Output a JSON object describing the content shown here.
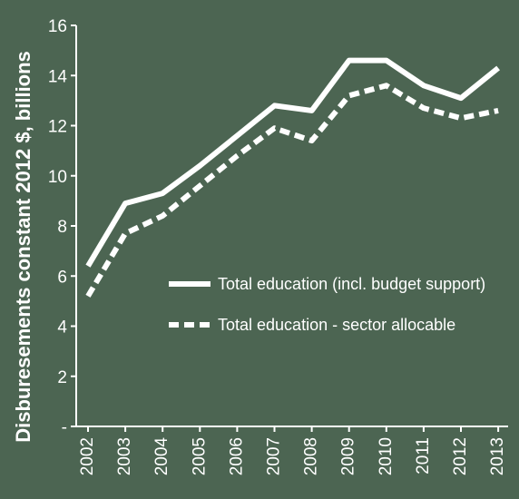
{
  "chart_data": {
    "type": "line",
    "ylabel": "Disburesements constant 2012 $, billions",
    "ylim": [
      0,
      16
    ],
    "y_ticks": [
      {
        "value": 0,
        "label": "-"
      },
      {
        "value": 2,
        "label": "2"
      },
      {
        "value": 4,
        "label": "4"
      },
      {
        "value": 6,
        "label": "6"
      },
      {
        "value": 8,
        "label": "8"
      },
      {
        "value": 10,
        "label": "10"
      },
      {
        "value": 12,
        "label": "12"
      },
      {
        "value": 14,
        "label": "14"
      },
      {
        "value": 16,
        "label": "16"
      }
    ],
    "x": [
      "2002",
      "2003",
      "2004",
      "2005",
      "2006",
      "2007",
      "2008",
      "2009",
      "2010",
      "2011",
      "2012",
      "2013"
    ],
    "series": [
      {
        "name": "Total education (incl. budget support)",
        "style": "solid",
        "values": [
          6.4,
          8.9,
          9.3,
          10.4,
          11.6,
          12.8,
          12.6,
          14.6,
          14.6,
          13.6,
          13.1,
          14.3
        ]
      },
      {
        "name": "Total education - sector allocable",
        "style": "dashed",
        "values": [
          5.2,
          7.7,
          8.4,
          9.6,
          10.8,
          11.9,
          11.4,
          13.2,
          13.6,
          12.7,
          12.3,
          12.6
        ]
      }
    ],
    "legend_position": "center-right",
    "grid": false,
    "colors": {
      "background": "#4c6552",
      "line": "#ffffff"
    }
  }
}
